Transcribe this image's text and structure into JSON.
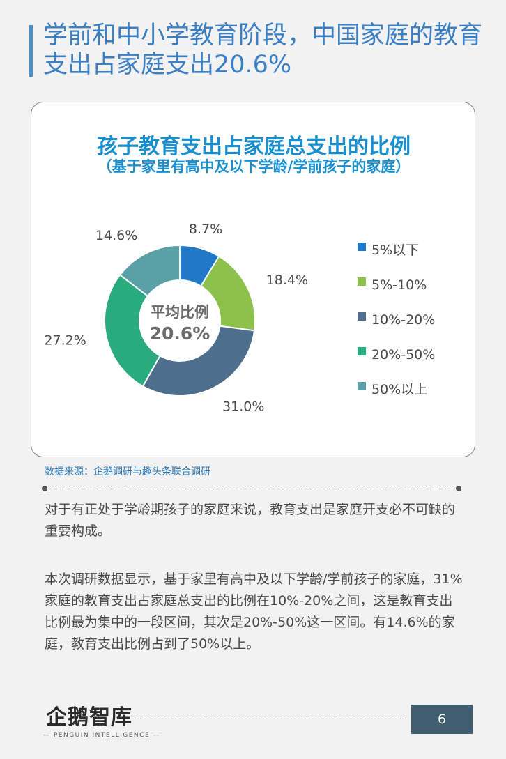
{
  "page": {
    "title": "学前和中小学教育阶段，中国家庭的教育支出占家庭支出20.6%",
    "source": "数据来源：企鹅调研与趣头条联合调研",
    "paragraph1": "对于有正处于学龄期孩子的家庭来说，教育支出是家庭开支必不可缺的重要构成。",
    "paragraph2": "本次调研数据显示，基于家里有高中及以下学龄/学前孩子的家庭，31%家庭的教育支出占家庭总支出的比例在10%-20%之间，这是教育支出比例最为集中的一段区间，其次是20%-50%这一区间。有14.6%的家庭，教育支出比例占到了50%以上。",
    "page_number": "6",
    "logo_cn": "企鹅智库",
    "logo_en": "— PENGUIN INTELLIGENCE —"
  },
  "chart_data": {
    "type": "pie",
    "variant": "donut",
    "title": "孩子教育支出占家庭总支出的比例",
    "subtitle": "（基于家里有高中及以下学龄/学前孩子的家庭）",
    "center_label": "平均比例",
    "center_value": "20.6%",
    "legend_position": "right",
    "categories": [
      "5%以下",
      "5%-10%",
      "10%-20%",
      "20%-50%",
      "50%以上"
    ],
    "values": [
      8.7,
      18.4,
      31.0,
      27.2,
      14.6
    ],
    "value_labels": [
      "8.7%",
      "18.4%",
      "31.0%",
      "27.2%",
      "14.6%"
    ],
    "colors": [
      "#1f78c8",
      "#8cc24b",
      "#4d6e8c",
      "#2aab7f",
      "#5aa0a6"
    ]
  }
}
